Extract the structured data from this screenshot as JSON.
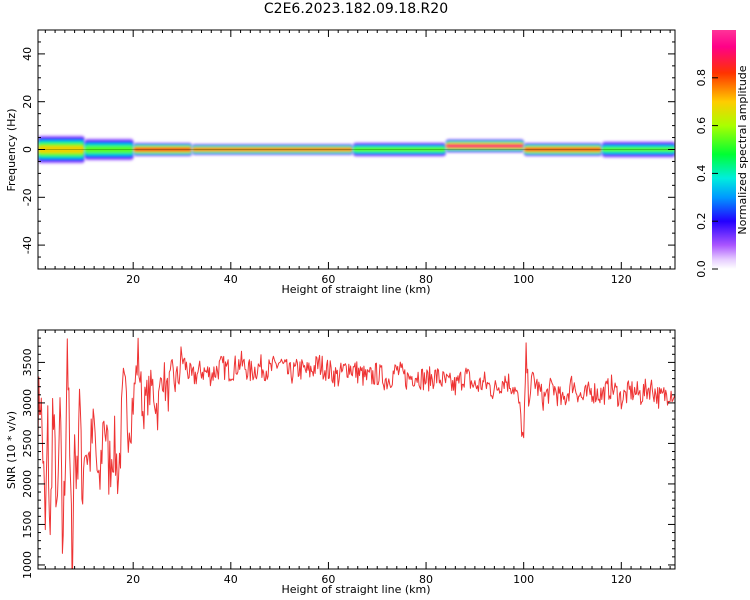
{
  "title": "C2E6.2023.182.09.18.R20",
  "chart_data": [
    {
      "type": "heatmap",
      "title": "",
      "xlabel": "Height of straight line (km)",
      "ylabel": "Frequency (Hz)",
      "xlim": [
        0.5,
        131
      ],
      "ylim": [
        -50,
        50
      ],
      "xticks": [
        20,
        40,
        60,
        80,
        100,
        120
      ],
      "yticks": [
        -40,
        -20,
        0,
        20,
        40
      ],
      "colorbar": {
        "label": "Normalized spectral amplitude",
        "range": [
          0,
          1
        ],
        "ticks": [
          0.0,
          0.2,
          0.4,
          0.6,
          0.8
        ],
        "colormap": "rainbow (purple-blue-cyan-green-yellow-orange-red-magenta)"
      },
      "band_segments": [
        {
          "x": [
            0.5,
            10
          ],
          "center_hz": 0,
          "halfwidth_hz": 2.5,
          "peak": 0.75
        },
        {
          "x": [
            10,
            20
          ],
          "center_hz": 0,
          "halfwidth_hz": 2.0,
          "peak": 0.6
        },
        {
          "x": [
            20,
            32
          ],
          "center_hz": 0,
          "halfwidth_hz": 1.2,
          "peak": 0.92
        },
        {
          "x": [
            32,
            65
          ],
          "center_hz": 0,
          "halfwidth_hz": 1.0,
          "peak": 0.85
        },
        {
          "x": [
            65,
            84
          ],
          "center_hz": 0,
          "halfwidth_hz": 1.3,
          "peak": 0.6
        },
        {
          "x": [
            84,
            100
          ],
          "center_hz": 1.5,
          "halfwidth_hz": 1.2,
          "peak": 0.95
        },
        {
          "x": [
            100,
            116
          ],
          "center_hz": 0,
          "halfwidth_hz": 1.2,
          "peak": 0.9
        },
        {
          "x": [
            116,
            131
          ],
          "center_hz": 0,
          "halfwidth_hz": 1.5,
          "peak": 0.55
        }
      ]
    },
    {
      "type": "line",
      "title": "",
      "xlabel": "Height of straight line (km)",
      "ylabel": "SNR (10 * v/v)",
      "xlim": [
        0.5,
        131
      ],
      "ylim": [
        950,
        3900
      ],
      "xticks": [
        20,
        40,
        60,
        80,
        100,
        120
      ],
      "yticks": [
        1000,
        1500,
        2000,
        2500,
        3000,
        3500
      ],
      "series": [
        {
          "name": "",
          "color": "#ee3333",
          "x": [
            0.5,
            1,
            1.5,
            2,
            2.5,
            3,
            3.5,
            4,
            4.5,
            5,
            5.5,
            6,
            6.5,
            7,
            7.5,
            8,
            8.5,
            9,
            9.5,
            10,
            11,
            12,
            13,
            14,
            15,
            16,
            17,
            18,
            19,
            20,
            21,
            22,
            23,
            24,
            25,
            26,
            27,
            28,
            29,
            30,
            32,
            34,
            36,
            38,
            40,
            42,
            44,
            46,
            48,
            50,
            52,
            54,
            56,
            58,
            60,
            62,
            64,
            66,
            68,
            70,
            72,
            74,
            76,
            78,
            80,
            82,
            84,
            86,
            88,
            90,
            92,
            94,
            96,
            98,
            99,
            100,
            100.5,
            101,
            102,
            104,
            106,
            108,
            110,
            112,
            114,
            116,
            118,
            120,
            122,
            124,
            126,
            128,
            130,
            131
          ],
          "y": [
            2900,
            3100,
            2400,
            1400,
            2700,
            1200,
            2900,
            2300,
            1500,
            3000,
            1250,
            2000,
            3850,
            2300,
            1000,
            2600,
            2000,
            3300,
            1800,
            2500,
            2300,
            2700,
            1800,
            2900,
            2200,
            2500,
            2100,
            3100,
            2800,
            3000,
            3600,
            2900,
            3100,
            3200,
            2900,
            3400,
            3100,
            3300,
            3250,
            3550,
            3300,
            3400,
            3350,
            3450,
            3400,
            3500,
            3380,
            3450,
            3400,
            3500,
            3350,
            3420,
            3380,
            3480,
            3400,
            3320,
            3450,
            3380,
            3300,
            3360,
            3280,
            3400,
            3300,
            3350,
            3280,
            3330,
            3250,
            3200,
            3350,
            3200,
            3250,
            3150,
            3300,
            3200,
            3000,
            2500,
            3600,
            3100,
            3300,
            3050,
            3200,
            3000,
            3250,
            3050,
            3150,
            3100,
            3200,
            3050,
            3150,
            3100,
            3200,
            3050,
            3150,
            3100
          ]
        }
      ]
    }
  ]
}
